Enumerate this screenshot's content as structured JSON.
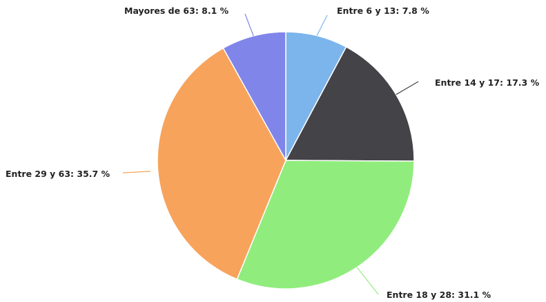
{
  "chart_data": {
    "type": "pie",
    "title": "",
    "slices": [
      {
        "label": "Entre 6 y 13",
        "value": 7.8,
        "color": "#7cb5ec"
      },
      {
        "label": "Entre 14 y 17",
        "value": 17.3,
        "color": "#434348"
      },
      {
        "label": "Entre 18 y 28",
        "value": 31.1,
        "color": "#90ed7d"
      },
      {
        "label": "Entre 29 y 63",
        "value": 35.7,
        "color": "#f7a35c"
      },
      {
        "label": "Mayores de 63",
        "value": 8.1,
        "color": "#8085e9"
      }
    ],
    "value_suffix": "%",
    "start_angle": "12 o'clock",
    "direction": "clockwise",
    "legend": "none"
  }
}
